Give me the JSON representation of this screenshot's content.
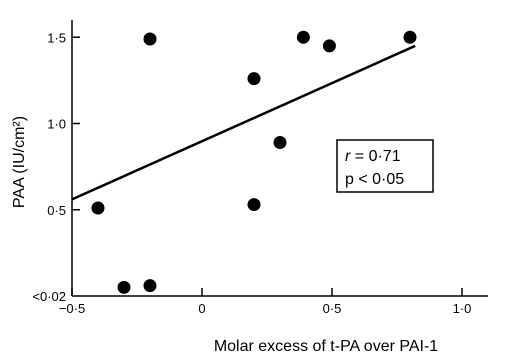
{
  "chart_data": {
    "type": "scatter",
    "xlabel": "Molar excess of t-PA over PAI-1",
    "ylabel": "PAA (IU/cm²)",
    "xlim": [
      -0.5,
      1.1
    ],
    "ylim": [
      0.0,
      1.6
    ],
    "x_ticks": [
      {
        "value": -0.5,
        "label": "−0·5"
      },
      {
        "value": 0.0,
        "label": "0"
      },
      {
        "value": 0.5,
        "label": "0·5"
      },
      {
        "value": 1.0,
        "label": "1·0"
      }
    ],
    "y_ticks": [
      {
        "value": 0.0,
        "label": "<0·02"
      },
      {
        "value": 0.5,
        "label": "0·5"
      },
      {
        "value": 1.0,
        "label": "1·0"
      },
      {
        "value": 1.5,
        "label": "1·5"
      }
    ],
    "points": [
      {
        "x": -0.4,
        "y": 0.51
      },
      {
        "x": -0.3,
        "y": 0.05
      },
      {
        "x": -0.2,
        "y": 0.06
      },
      {
        "x": -0.2,
        "y": 1.49
      },
      {
        "x": 0.2,
        "y": 1.26
      },
      {
        "x": 0.2,
        "y": 0.53
      },
      {
        "x": 0.3,
        "y": 0.89
      },
      {
        "x": 0.39,
        "y": 1.5
      },
      {
        "x": 0.49,
        "y": 1.45
      },
      {
        "x": 0.8,
        "y": 1.5
      }
    ],
    "regression_line": {
      "x": [
        -0.5,
        0.82
      ],
      "y": [
        0.56,
        1.45
      ]
    },
    "annotation": {
      "r_label": "r",
      "r_value": " = 0·71",
      "p_text": "p < 0·05"
    },
    "grid": false,
    "legend": "none"
  }
}
